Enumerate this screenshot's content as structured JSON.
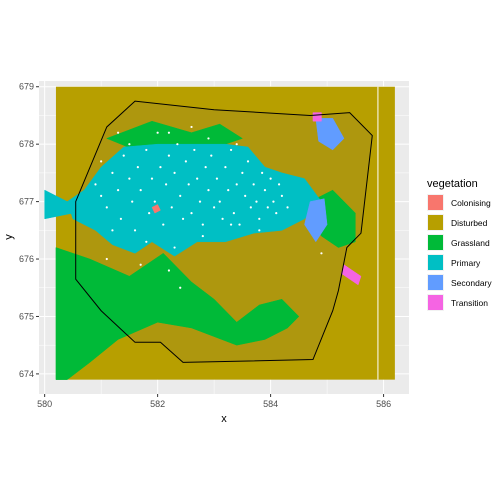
{
  "chart_data": {
    "type": "raster-map",
    "title": "",
    "xlabel": "x",
    "ylabel": "y",
    "xlim": [
      579.9,
      586.45
    ],
    "ylim": [
      673.65,
      679.1
    ],
    "x_ticks": [
      580,
      582,
      584,
      586
    ],
    "y_ticks": [
      674,
      675,
      676,
      677,
      678,
      679
    ],
    "x_tick_labels": [
      "580",
      "582",
      "584",
      "586"
    ],
    "y_tick_labels": [
      "674",
      "675",
      "676",
      "677",
      "678",
      "679"
    ],
    "grid": true,
    "legend": {
      "title": "vegetation",
      "position": "right",
      "entries": [
        {
          "label": "Colonising",
          "color": "#F8766D"
        },
        {
          "label": "Disturbed",
          "color": "#B79F00"
        },
        {
          "label": "Grassland",
          "color": "#00BA38"
        },
        {
          "label": "Primary",
          "color": "#00BFC4"
        },
        {
          "label": "Secondary",
          "color": "#619CFF"
        },
        {
          "label": "Transition",
          "color": "#F564E3"
        }
      ]
    },
    "raster_extent": {
      "xmin": 580.2,
      "xmax": 586.2,
      "ymin": 673.9,
      "ymax": 679.0
    },
    "background_class": "Disturbed",
    "regions": [
      {
        "class": "Grassland",
        "polygon": [
          [
            580.2,
            676.2
          ],
          [
            580.8,
            676.0
          ],
          [
            581.5,
            675.7
          ],
          [
            582.1,
            676.1
          ],
          [
            582.6,
            675.6
          ],
          [
            583.0,
            675.3
          ],
          [
            583.4,
            674.9
          ],
          [
            583.8,
            675.2
          ],
          [
            584.2,
            675.3
          ],
          [
            584.5,
            675.0
          ],
          [
            584.3,
            674.8
          ],
          [
            583.9,
            674.6
          ],
          [
            583.4,
            674.5
          ],
          [
            582.6,
            674.8
          ],
          [
            582.0,
            674.9
          ],
          [
            581.3,
            674.6
          ],
          [
            580.8,
            674.2
          ],
          [
            580.4,
            673.9
          ],
          [
            580.2,
            673.9
          ]
        ]
      },
      {
        "class": "Grassland",
        "polygon": [
          [
            584.7,
            677.0
          ],
          [
            585.1,
            677.2
          ],
          [
            585.5,
            676.8
          ],
          [
            585.5,
            676.3
          ],
          [
            585.2,
            676.2
          ],
          [
            584.9,
            676.4
          ],
          [
            584.7,
            676.7
          ]
        ]
      },
      {
        "class": "Grassland",
        "polygon": [
          [
            581.1,
            678.1
          ],
          [
            581.9,
            678.4
          ],
          [
            582.6,
            678.2
          ],
          [
            583.1,
            678.35
          ],
          [
            583.5,
            678.1
          ],
          [
            582.9,
            677.9
          ],
          [
            582.3,
            677.95
          ],
          [
            581.6,
            677.9
          ]
        ]
      },
      {
        "class": "Primary",
        "polygon": [
          [
            580.4,
            677.0
          ],
          [
            580.7,
            677.2
          ],
          [
            581.0,
            677.6
          ],
          [
            581.4,
            677.95
          ],
          [
            582.0,
            678.0
          ],
          [
            582.6,
            678.0
          ],
          [
            583.2,
            678.0
          ],
          [
            583.6,
            677.95
          ],
          [
            583.9,
            677.6
          ],
          [
            584.2,
            677.5
          ],
          [
            584.6,
            677.4
          ],
          [
            584.9,
            677.0
          ],
          [
            584.6,
            676.7
          ],
          [
            584.2,
            676.5
          ],
          [
            583.7,
            676.45
          ],
          [
            583.2,
            676.3
          ],
          [
            582.7,
            676.3
          ],
          [
            582.3,
            676.05
          ],
          [
            581.9,
            676.3
          ],
          [
            581.6,
            676.1
          ],
          [
            581.2,
            676.25
          ],
          [
            580.9,
            676.5
          ],
          [
            580.5,
            676.7
          ]
        ]
      },
      {
        "class": "Primary",
        "polygon": [
          [
            580.0,
            677.2
          ],
          [
            580.4,
            677.0
          ],
          [
            580.5,
            676.8
          ],
          [
            580.0,
            676.7
          ]
        ]
      },
      {
        "class": "Secondary",
        "polygon": [
          [
            584.8,
            678.45
          ],
          [
            585.1,
            678.45
          ],
          [
            585.3,
            678.1
          ],
          [
            585.1,
            677.9
          ],
          [
            584.85,
            678.05
          ]
        ]
      },
      {
        "class": "Secondary",
        "polygon": [
          [
            584.7,
            677.0
          ],
          [
            584.95,
            677.05
          ],
          [
            585.0,
            676.6
          ],
          [
            584.8,
            676.3
          ],
          [
            584.6,
            676.6
          ]
        ]
      },
      {
        "class": "Transition",
        "polygon": [
          [
            584.75,
            678.55
          ],
          [
            584.9,
            678.55
          ],
          [
            584.9,
            678.4
          ],
          [
            584.75,
            678.4
          ]
        ]
      },
      {
        "class": "Transition",
        "polygon": [
          [
            585.3,
            675.9
          ],
          [
            585.6,
            675.7
          ],
          [
            585.55,
            675.55
          ],
          [
            585.25,
            675.75
          ]
        ]
      },
      {
        "class": "Colonising",
        "polygon": [
          [
            581.9,
            676.9
          ],
          [
            582.0,
            676.95
          ],
          [
            582.05,
            676.85
          ],
          [
            581.95,
            676.8
          ]
        ]
      }
    ],
    "boundary": [
      [
        580.55,
        677.0
      ],
      [
        581.1,
        678.3
      ],
      [
        581.6,
        678.75
      ],
      [
        583.0,
        678.6
      ],
      [
        584.7,
        678.5
      ],
      [
        585.4,
        678.55
      ],
      [
        585.8,
        678.15
      ],
      [
        585.6,
        676.45
      ],
      [
        585.35,
        676.2
      ],
      [
        585.2,
        675.45
      ],
      [
        585.1,
        675.1
      ],
      [
        584.75,
        674.25
      ],
      [
        582.45,
        674.2
      ],
      [
        582.05,
        674.55
      ],
      [
        581.6,
        674.55
      ],
      [
        581.0,
        675.1
      ],
      [
        580.55,
        675.65
      ],
      [
        580.55,
        676.4
      ]
    ],
    "vertical_line_x": 585.9,
    "points_color": "#FFFFFF",
    "points": [
      [
        580.9,
        677.3
      ],
      [
        581.0,
        677.1
      ],
      [
        581.1,
        676.9
      ],
      [
        581.2,
        677.5
      ],
      [
        581.3,
        677.2
      ],
      [
        581.35,
        676.7
      ],
      [
        581.4,
        677.8
      ],
      [
        581.5,
        677.4
      ],
      [
        581.55,
        677.0
      ],
      [
        581.6,
        676.5
      ],
      [
        581.65,
        677.6
      ],
      [
        581.7,
        677.2
      ],
      [
        581.8,
        677.9
      ],
      [
        581.85,
        676.8
      ],
      [
        581.9,
        677.4
      ],
      [
        581.95,
        677.0
      ],
      [
        582.0,
        678.2
      ],
      [
        582.05,
        677.6
      ],
      [
        582.1,
        676.6
      ],
      [
        582.15,
        677.3
      ],
      [
        582.2,
        677.8
      ],
      [
        582.25,
        676.9
      ],
      [
        582.3,
        677.5
      ],
      [
        582.35,
        678.0
      ],
      [
        582.4,
        677.1
      ],
      [
        582.45,
        676.7
      ],
      [
        582.5,
        677.7
      ],
      [
        582.55,
        677.3
      ],
      [
        582.6,
        676.8
      ],
      [
        582.65,
        677.9
      ],
      [
        582.7,
        677.4
      ],
      [
        582.75,
        677.0
      ],
      [
        582.8,
        676.6
      ],
      [
        582.85,
        677.6
      ],
      [
        582.9,
        677.2
      ],
      [
        582.95,
        677.8
      ],
      [
        583.0,
        676.9
      ],
      [
        583.05,
        677.4
      ],
      [
        583.1,
        677.0
      ],
      [
        583.15,
        676.7
      ],
      [
        583.2,
        677.6
      ],
      [
        583.25,
        677.2
      ],
      [
        583.3,
        677.9
      ],
      [
        583.35,
        676.8
      ],
      [
        583.4,
        677.3
      ],
      [
        583.45,
        676.6
      ],
      [
        583.5,
        677.5
      ],
      [
        583.55,
        677.1
      ],
      [
        583.6,
        677.7
      ],
      [
        583.65,
        676.9
      ],
      [
        583.7,
        677.3
      ],
      [
        583.75,
        677.0
      ],
      [
        583.8,
        676.7
      ],
      [
        583.85,
        677.5
      ],
      [
        583.9,
        677.2
      ],
      [
        583.95,
        676.9
      ],
      [
        584.0,
        677.4
      ],
      [
        584.05,
        677.0
      ],
      [
        584.1,
        676.8
      ],
      [
        584.15,
        677.3
      ],
      [
        584.2,
        677.1
      ],
      [
        584.3,
        676.9
      ],
      [
        581.2,
        676.5
      ],
      [
        581.8,
        676.3
      ],
      [
        582.3,
        676.2
      ],
      [
        582.8,
        676.4
      ],
      [
        583.3,
        676.6
      ],
      [
        583.8,
        676.5
      ],
      [
        581.5,
        678.0
      ],
      [
        582.2,
        678.2
      ],
      [
        582.9,
        678.1
      ],
      [
        583.4,
        678.0
      ],
      [
        581.0,
        677.7
      ],
      [
        581.3,
        678.2
      ],
      [
        582.6,
        678.3
      ],
      [
        582.2,
        675.8
      ],
      [
        581.7,
        675.9
      ],
      [
        582.4,
        675.5
      ],
      [
        584.9,
        676.1
      ],
      [
        581.1,
        676.0
      ]
    ]
  }
}
